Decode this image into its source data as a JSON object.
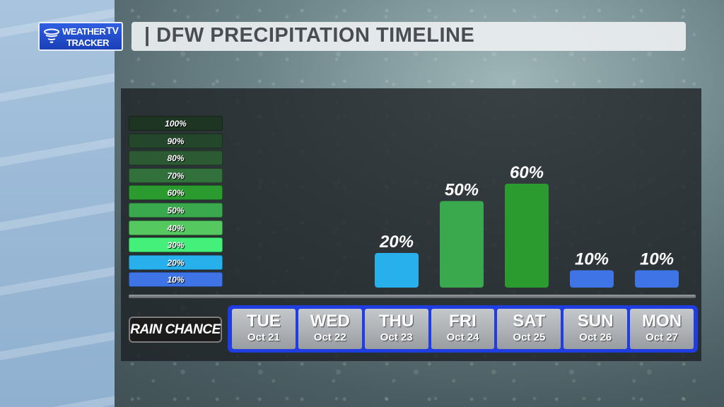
{
  "header": {
    "title": "| DFW PRECIPITATION TIMELINE",
    "logo_line1": "WEATHER",
    "logo_line2": "TRACKER",
    "logo_tv": "TV"
  },
  "legend": [
    {
      "label": "100%",
      "color": "#1f3524"
    },
    {
      "label": "90%",
      "color": "#24472c"
    },
    {
      "label": "80%",
      "color": "#2b5a33"
    },
    {
      "label": "70%",
      "color": "#32703c"
    },
    {
      "label": "60%",
      "color": "#2b9b30"
    },
    {
      "label": "50%",
      "color": "#3aa84d"
    },
    {
      "label": "40%",
      "color": "#55c960"
    },
    {
      "label": "30%",
      "color": "#45f07a"
    },
    {
      "label": "20%",
      "color": "#27b0ec"
    },
    {
      "label": "10%",
      "color": "#3e74e6"
    }
  ],
  "rain_chance_label": "RAIN CHANCE",
  "days": [
    {
      "name": "TUE",
      "date": "Oct 21"
    },
    {
      "name": "WED",
      "date": "Oct 22"
    },
    {
      "name": "THU",
      "date": "Oct 23"
    },
    {
      "name": "FRI",
      "date": "Oct 24"
    },
    {
      "name": "SAT",
      "date": "Oct 25"
    },
    {
      "name": "SUN",
      "date": "Oct 26"
    },
    {
      "name": "MON",
      "date": "Oct 27"
    }
  ],
  "chart_data": {
    "type": "bar",
    "title": "DFW PRECIPITATION TIMELINE",
    "categories": [
      "TUE Oct 21",
      "WED Oct 22",
      "THU Oct 23",
      "FRI Oct 24",
      "SAT Oct 25",
      "SUN Oct 26",
      "MON Oct 27"
    ],
    "values": [
      null,
      null,
      20,
      50,
      60,
      10,
      10
    ],
    "labels": [
      "",
      "",
      "20%",
      "50%",
      "60%",
      "10%",
      "10%"
    ],
    "bar_colors": [
      null,
      null,
      "#27b0ec",
      "#3aa84d",
      "#2b9b30",
      "#3e74e6",
      "#3e74e6"
    ],
    "ylabel": "RAIN CHANCE",
    "ylim": [
      0,
      100
    ],
    "legend_position": "left",
    "grid": false
  }
}
